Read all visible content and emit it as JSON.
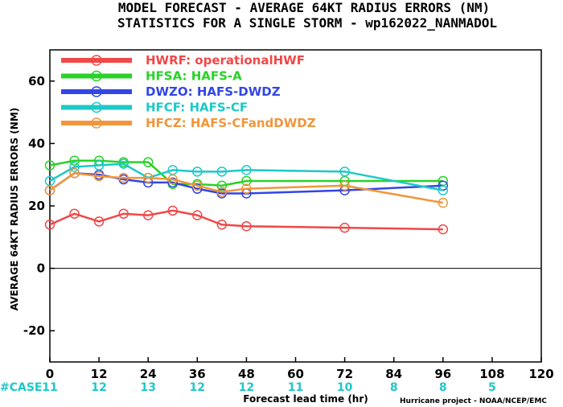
{
  "title_line1": "MODEL FORECAST - AVERAGE 64KT RADIUS ERRORS (NM)",
  "title_line2": "STATISTICS FOR A SINGLE STORM - wp162022_NANMADOL",
  "credit": "Hurricane project - NOAA/NCEP/EMC",
  "case_label": "#CASE",
  "colors": {
    "case": "#1ec8c8"
  },
  "chart_data": {
    "type": "line",
    "xlabel": "Forecast lead time (hr)",
    "ylabel": "AVERAGE 64KT RADIUS ERRORS (NM)",
    "xlim": [
      0,
      120
    ],
    "ylim": [
      -30,
      70
    ],
    "xticks": [
      0,
      12,
      24,
      36,
      48,
      60,
      72,
      84,
      96,
      108,
      120
    ],
    "yticks": [
      -20,
      0,
      20,
      40,
      60
    ],
    "zero_line": true,
    "legend_position": "top-left",
    "case_counts": [
      {
        "x": 0,
        "label": "11"
      },
      {
        "x": 12,
        "label": "12"
      },
      {
        "x": 24,
        "label": "13"
      },
      {
        "x": 36,
        "label": "12"
      },
      {
        "x": 48,
        "label": "12"
      },
      {
        "x": 60,
        "label": "11"
      },
      {
        "x": 72,
        "label": "10"
      },
      {
        "x": 84,
        "label": "8"
      },
      {
        "x": 96,
        "label": "8"
      },
      {
        "x": 108,
        "label": "5"
      }
    ],
    "series": [
      {
        "name": "HWRF: operationalHWF",
        "color": "#f04848",
        "x": [
          0,
          6,
          12,
          18,
          24,
          30,
          36,
          42,
          48,
          72,
          96
        ],
        "y": [
          14,
          17.5,
          15,
          17.5,
          17,
          18.5,
          17,
          14,
          13.5,
          13,
          12.5
        ]
      },
      {
        "name": "HFSA: HAFS-A",
        "color": "#28d228",
        "x": [
          0,
          6,
          12,
          18,
          24,
          30,
          36,
          42,
          48,
          72,
          96
        ],
        "y": [
          33,
          34.5,
          34.5,
          34,
          34,
          27,
          27,
          26.5,
          28,
          28,
          28
        ]
      },
      {
        "name": "DWZO: HAFS-DWDZ",
        "color": "#3246e6",
        "x": [
          0,
          6,
          12,
          18,
          24,
          30,
          36,
          42,
          48,
          72,
          96
        ],
        "y": [
          25,
          30.5,
          30,
          28.5,
          27.5,
          27.5,
          25.5,
          24,
          24,
          25,
          26.5
        ]
      },
      {
        "name": "HFCF: HAFS-CF",
        "color": "#1ec8c8",
        "x": [
          0,
          6,
          12,
          18,
          24,
          30,
          36,
          42,
          48,
          72,
          96
        ],
        "y": [
          28,
          32.5,
          33,
          33.5,
          29,
          31.5,
          31,
          31,
          31.5,
          31,
          25
        ]
      },
      {
        "name": "HFCZ: HAFS-CFandDWDZ",
        "color": "#f0963c",
        "x": [
          0,
          6,
          12,
          18,
          24,
          30,
          36,
          42,
          48,
          72,
          96
        ],
        "y": [
          25,
          30.5,
          29.5,
          29,
          29,
          28.5,
          26.5,
          24.5,
          25.5,
          26.5,
          21
        ]
      }
    ]
  }
}
